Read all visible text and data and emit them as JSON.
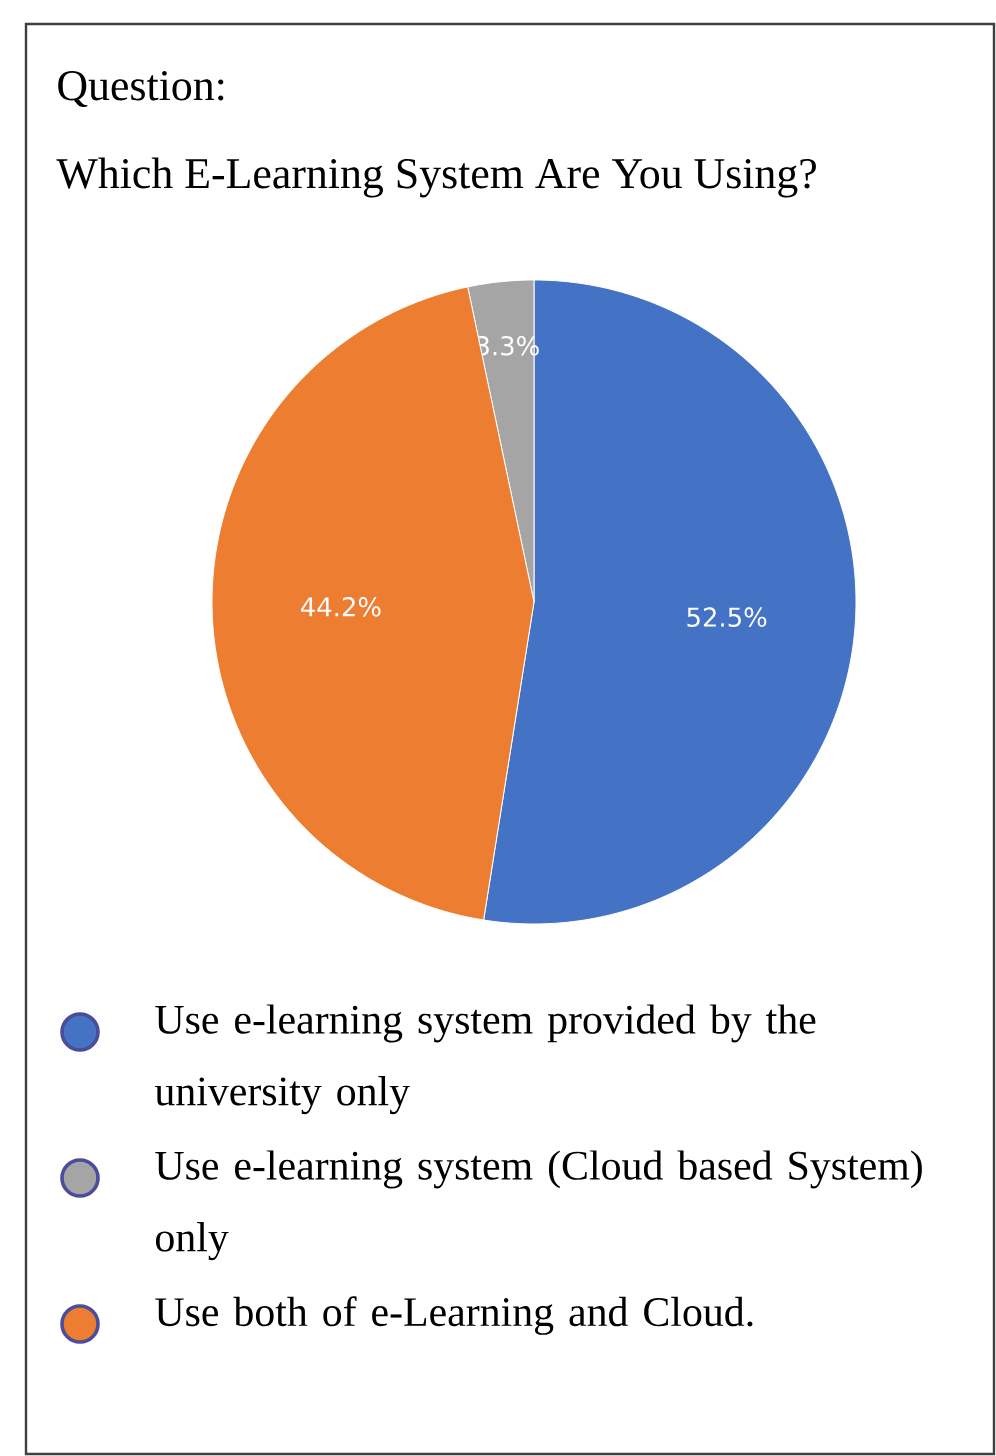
{
  "chart_data": {
    "type": "pie",
    "title": "Question:",
    "subtitle": "Which E-Learning System Are You Using?",
    "categories": [
      "Use e-learning system provided by the university only",
      "Use e-learning system (Cloud based System) only",
      "Use both of e-Learning and Cloud."
    ],
    "values": [
      52.5,
      3.3,
      44.2
    ],
    "value_labels": [
      "52.5%",
      "3.3%",
      "44.2%"
    ],
    "colors": [
      "#4472c4",
      "#a5a5a5",
      "#ed7d31"
    ],
    "legend": "bottom"
  }
}
